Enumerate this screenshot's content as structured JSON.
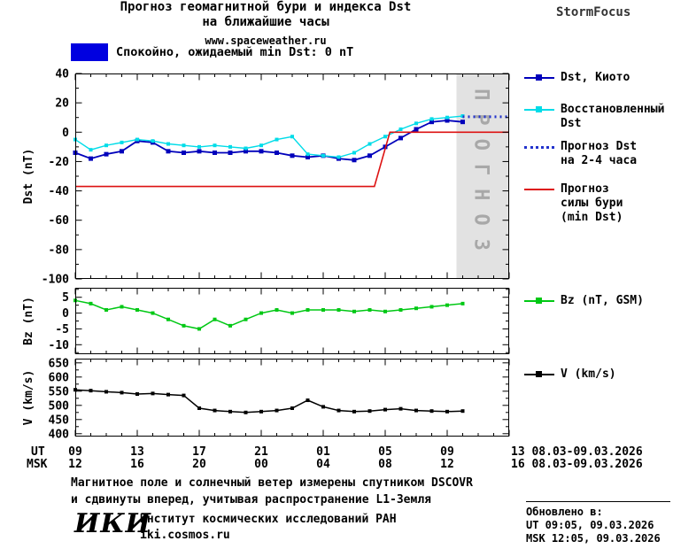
{
  "header": {
    "title_line1": "Прогноз геомагнитной бури и индекса Dst",
    "title_line2": "на ближайшие часы",
    "subtitle": "www.spaceweather.ru",
    "brand": "StormFocus"
  },
  "status_banner": {
    "color": "#0000e0",
    "text": "Спокойно, ожидаемый min Dst: 0 nT"
  },
  "legend": {
    "items": [
      {
        "key": "dst-kyoto",
        "label": "Dst, Киото",
        "color": "#0000bb",
        "type": "square-line"
      },
      {
        "key": "dst-recovered",
        "label": "Восстановленный\nDst",
        "color": "#00dce8",
        "type": "square-line"
      },
      {
        "key": "dst-forecast",
        "label": "Прогноз Dst\nна 2-4 часа",
        "color": "#2233cc",
        "type": "dotted"
      },
      {
        "key": "storm-forecast",
        "label": "Прогноз\nсилы бури\n(min Dst)",
        "color": "#dd1111",
        "type": "line"
      },
      {
        "key": "bz",
        "label": "Bz (nT, GSM)",
        "color": "#00c814",
        "type": "square-line"
      },
      {
        "key": "v",
        "label": "V (km/s)",
        "color": "#000000",
        "type": "square-line"
      }
    ]
  },
  "xaxis": {
    "ut_label": "UT",
    "msk_label": "MSK",
    "tick_hours": [
      9,
      13,
      17,
      21,
      25,
      29,
      33
    ],
    "ut_ticks": [
      "09",
      "13",
      "17",
      "21",
      "01",
      "05",
      "09"
    ],
    "msk_ticks": [
      "12",
      "16",
      "20",
      "00",
      "04",
      "08",
      "12"
    ],
    "ut_right": "13 08.03-09.03.2026",
    "msk_right": "16 08.03-09.03.2026"
  },
  "footer": {
    "note_line1": "Магнитное поле и солнечный ветер измерены спутником DSCOVR",
    "note_line2": "и сдвинуты вперед, учитывая распространение L1-Земля",
    "logo": "ИКИ",
    "institute": "Институт космических исследований РАН",
    "site": "iki.cosmos.ru",
    "updated_title": "Обновлено в:",
    "updated_ut": "UT  09:05, 09.03.2026",
    "updated_msk": "MSK 12:05, 09.03.2026"
  },
  "chart_data": [
    {
      "key": "dst",
      "type": "line",
      "ylabel": "Dst (nT)",
      "ylim": [
        -100,
        40
      ],
      "yticks": [
        40,
        20,
        0,
        -20,
        -40,
        -60,
        -80,
        -100
      ],
      "yminor": 10,
      "xlim": [
        9,
        37
      ],
      "xticks": [
        9,
        13,
        17,
        21,
        25,
        29,
        33,
        37
      ],
      "forecast_band": {
        "start": 33.6,
        "end": 37,
        "label": "ПРОГНОЗ"
      },
      "series": [
        {
          "key": "dst-kyoto",
          "name": "Dst, Киото",
          "color": "#0000bb",
          "marker": "square",
          "width": 1.8,
          "x": [
            9,
            10,
            11,
            12,
            13,
            14,
            15,
            16,
            17,
            18,
            19,
            20,
            21,
            22,
            23,
            24,
            25,
            26,
            27,
            28,
            29,
            30,
            31,
            32,
            33,
            34
          ],
          "y": [
            -14,
            -18,
            -15,
            -13,
            -6,
            -7,
            -13,
            -14,
            -13,
            -14,
            -14,
            -13,
            -13,
            -14,
            -16,
            -17,
            -16,
            -18,
            -19,
            -16,
            -10,
            -4,
            2,
            7,
            8,
            7
          ]
        },
        {
          "key": "dst-recovered",
          "name": "Восстановленный Dst",
          "color": "#00dce8",
          "marker": "square",
          "width": 1.4,
          "x": [
            9,
            10,
            11,
            12,
            13,
            14,
            15,
            16,
            17,
            18,
            19,
            20,
            21,
            22,
            23,
            24,
            25,
            26,
            27,
            28,
            29,
            30,
            31,
            32,
            33,
            34
          ],
          "y": [
            -5,
            -12,
            -9,
            -7,
            -5,
            -6,
            -8,
            -9,
            -10,
            -9,
            -10,
            -11,
            -9,
            -5,
            -3,
            -15,
            -16,
            -17,
            -14,
            -8,
            -3,
            2,
            6,
            9,
            10,
            11
          ]
        },
        {
          "key": "dst-forecast",
          "name": "Прогноз Dst на 2-4 часа",
          "color": "#2233cc",
          "style": "dotted",
          "width": 3,
          "x": [
            34,
            37
          ],
          "y": [
            10.5,
            10.5
          ]
        },
        {
          "key": "storm-forecast",
          "name": "Прогноз силы бури (min Dst)",
          "color": "#dd1111",
          "width": 1.6,
          "x": [
            9,
            28.3,
            29.3,
            37
          ],
          "y": [
            -37,
            -37,
            0,
            0
          ]
        }
      ]
    },
    {
      "key": "bz",
      "type": "line",
      "ylabel": "Bz (nT)",
      "ylim": [
        -13,
        8
      ],
      "yticks": [
        5,
        0,
        -5,
        -10
      ],
      "yminor": 2.5,
      "xlim": [
        9,
        37
      ],
      "xticks": [
        9,
        13,
        17,
        21,
        25,
        29,
        33,
        37
      ],
      "series": [
        {
          "key": "bz",
          "name": "Bz (nT, GSM)",
          "color": "#00c814",
          "marker": "square",
          "width": 1.5,
          "x": [
            9,
            10,
            11,
            12,
            13,
            14,
            15,
            16,
            17,
            18,
            19,
            20,
            21,
            22,
            23,
            24,
            25,
            26,
            27,
            28,
            29,
            30,
            31,
            32,
            33,
            34
          ],
          "y": [
            4,
            3,
            1,
            2,
            1,
            0,
            -2,
            -4,
            -5,
            -2,
            -4,
            -2,
            0,
            1,
            0,
            1,
            1,
            1,
            0.5,
            1,
            0.5,
            1,
            1.5,
            2,
            2.5,
            3
          ]
        }
      ]
    },
    {
      "key": "v",
      "type": "line",
      "ylabel": "V (km/s)",
      "ylim": [
        390,
        665
      ],
      "yticks": [
        650,
        600,
        550,
        500,
        450,
        400
      ],
      "yminor": 25,
      "xlim": [
        9,
        37
      ],
      "xticks": [
        9,
        13,
        17,
        21,
        25,
        29,
        33,
        37
      ],
      "series": [
        {
          "key": "v",
          "name": "V (km/s)",
          "color": "#000000",
          "marker": "square",
          "width": 1.5,
          "x": [
            9,
            10,
            11,
            12,
            13,
            14,
            15,
            16,
            17,
            18,
            19,
            20,
            21,
            22,
            23,
            24,
            25,
            26,
            27,
            28,
            29,
            30,
            31,
            32,
            33,
            34
          ],
          "y": [
            555,
            552,
            548,
            545,
            540,
            542,
            538,
            535,
            490,
            482,
            478,
            475,
            478,
            482,
            490,
            518,
            495,
            482,
            478,
            480,
            485,
            488,
            482,
            480,
            478,
            480
          ]
        }
      ]
    }
  ]
}
